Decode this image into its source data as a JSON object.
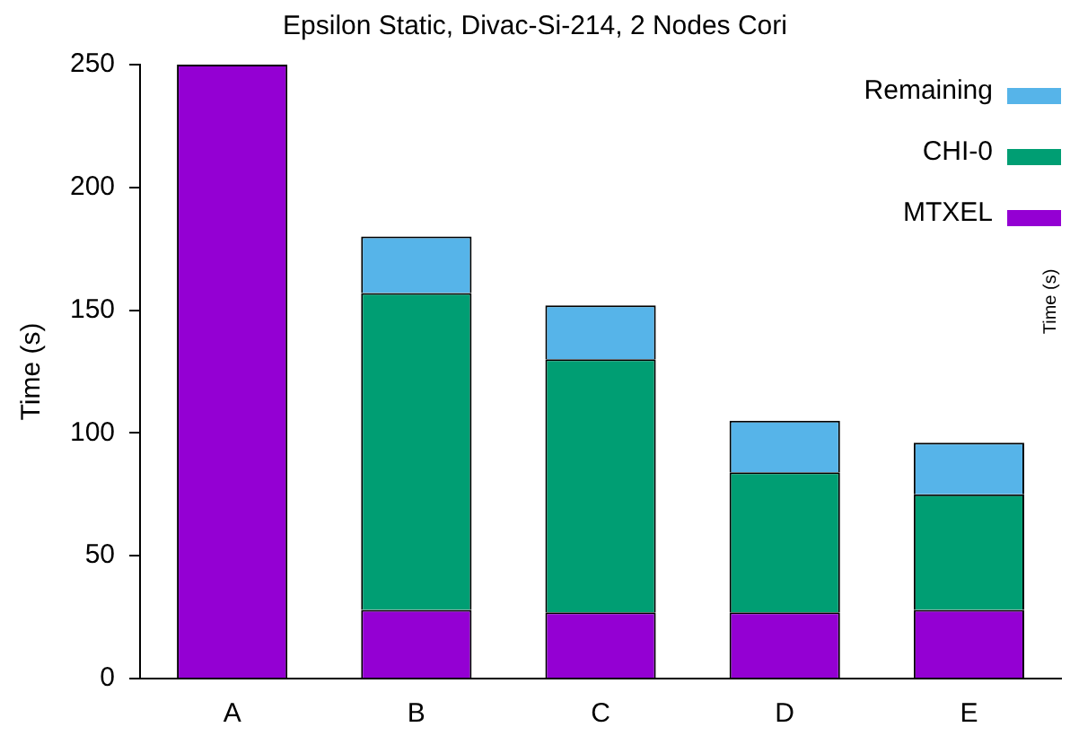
{
  "chart_data": {
    "type": "bar",
    "title": "Epsilon Static, Divac-Si-214, 2 Nodes Cori",
    "ylabel": "Time (s)",
    "annotations": [
      "Time (s)"
    ],
    "categories": [
      "A",
      "B",
      "C",
      "D",
      "E"
    ],
    "stacked": true,
    "series": [
      {
        "name": "MTXEL",
        "color": "#9400d3",
        "values": [
          250,
          28,
          27,
          27,
          28
        ]
      },
      {
        "name": "CHI-0",
        "color": "#009e73",
        "values": [
          null,
          129,
          103,
          57,
          47
        ]
      },
      {
        "name": "Remaining",
        "color": "#56b4e9",
        "values": [
          null,
          23,
          22,
          21,
          21
        ]
      }
    ],
    "ylim": [
      0,
      250
    ],
    "yticks": [
      0,
      50,
      100,
      150,
      200,
      250
    ],
    "grid": false,
    "legend": "top right"
  }
}
